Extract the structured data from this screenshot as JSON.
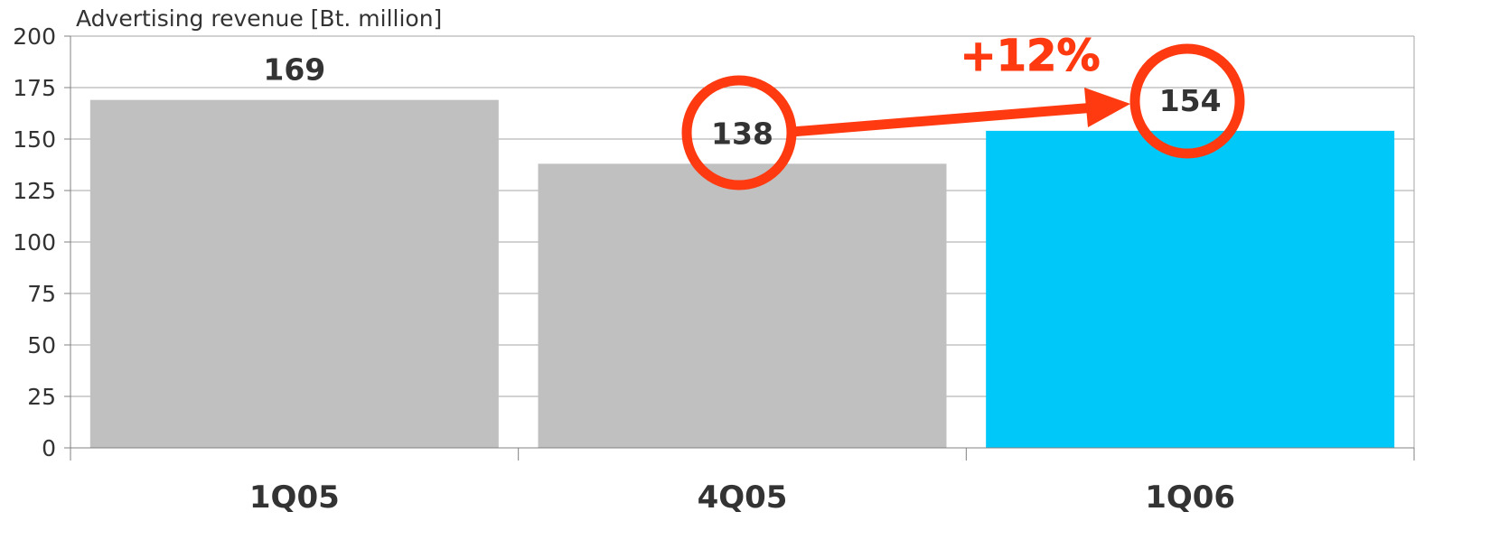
{
  "chart_data": {
    "type": "bar",
    "title": "",
    "ylabel": "Advertising revenue [Bt. million]",
    "xlabel": "",
    "categories": [
      "1Q05",
      "4Q05",
      "1Q06"
    ],
    "values": [
      169,
      138,
      154
    ],
    "data_labels": [
      "169",
      "138",
      "154"
    ],
    "ylim": [
      0,
      200
    ],
    "yticks": [
      0,
      25,
      50,
      75,
      100,
      125,
      150,
      175,
      200
    ],
    "grid": true,
    "legend": "none",
    "bar_colors": [
      "#c0c0c0",
      "#c0c0c0",
      "#00c8f8"
    ],
    "highlight_color": "#ff3a10",
    "annotation": {
      "text": "+12%",
      "from_category": "4Q05",
      "to_category": "1Q06"
    }
  }
}
